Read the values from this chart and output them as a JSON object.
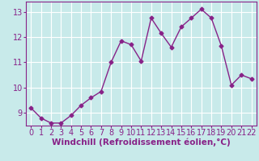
{
  "x": [
    0,
    1,
    2,
    3,
    4,
    5,
    6,
    7,
    8,
    9,
    10,
    11,
    12,
    13,
    14,
    15,
    16,
    17,
    18,
    19,
    20,
    21,
    22
  ],
  "y": [
    9.2,
    8.8,
    8.6,
    8.6,
    8.9,
    9.3,
    9.6,
    9.85,
    11.0,
    11.85,
    11.7,
    11.05,
    12.75,
    12.15,
    11.6,
    12.4,
    12.75,
    13.1,
    12.75,
    11.65,
    10.1,
    10.5,
    10.35
  ],
  "line_color": "#882288",
  "marker": "D",
  "marker_size": 2.5,
  "line_width": 1.0,
  "bg_color": "#c8eaea",
  "grid_color": "#ffffff",
  "xlabel": "Windchill (Refroidissement éolien,°C)",
  "xlabel_fontsize": 7.5,
  "tick_fontsize": 7,
  "ylim": [
    8.5,
    13.4
  ],
  "xlim": [
    -0.5,
    22.5
  ],
  "yticks": [
    9,
    10,
    11,
    12,
    13
  ],
  "xticks": [
    0,
    1,
    2,
    3,
    4,
    5,
    6,
    7,
    8,
    9,
    10,
    11,
    12,
    13,
    14,
    15,
    16,
    17,
    18,
    19,
    20,
    21,
    22
  ]
}
